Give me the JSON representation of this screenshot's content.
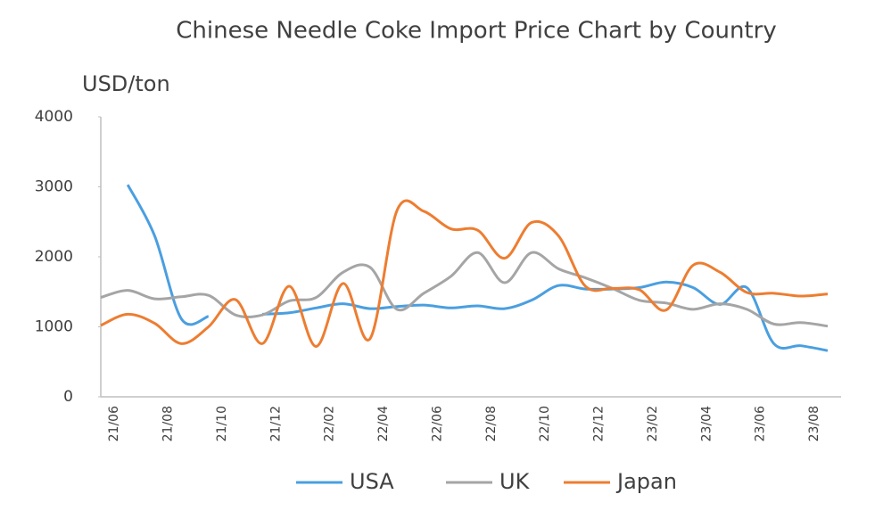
{
  "chart_data": {
    "type": "line",
    "title": "Chinese Needle Coke Import Price Chart by Country",
    "y_label": "USD/ton",
    "categories": [
      null,
      "21/06",
      null,
      "21/08",
      null,
      "21/10",
      null,
      "21/12",
      null,
      "22/02",
      null,
      "22/04",
      null,
      "22/06",
      null,
      "22/08",
      null,
      "22/10",
      null,
      "22/12",
      null,
      "23/02",
      null,
      "23/04",
      null,
      "23/06",
      null,
      "23/08"
    ],
    "series": [
      {
        "name": "USA",
        "color": "#4a9fe0",
        "values": [
          null,
          3030,
          2300,
          1110,
          1150,
          null,
          1180,
          1200,
          1270,
          1330,
          1260,
          1290,
          1310,
          1270,
          1300,
          1260,
          1380,
          1590,
          1540,
          1540,
          1560,
          1640,
          1560,
          1320,
          1560,
          760,
          730,
          660
        ]
      },
      {
        "name": "UK",
        "color": "#a5a5a5",
        "values": [
          1420,
          1520,
          1400,
          1430,
          1450,
          1170,
          1170,
          1370,
          1420,
          1780,
          1850,
          1250,
          1480,
          1720,
          2060,
          1630,
          2060,
          1830,
          1700,
          1550,
          1380,
          1340,
          1250,
          1330,
          1250,
          1040,
          1060,
          1010
        ]
      },
      {
        "name": "Japan",
        "color": "#ed7d31",
        "values": [
          1020,
          1180,
          1050,
          760,
          1000,
          1390,
          760,
          1580,
          720,
          1620,
          830,
          2660,
          2650,
          2400,
          2380,
          1980,
          2490,
          2300,
          1580,
          1550,
          1530,
          1240,
          1880,
          1780,
          1490,
          1480,
          1440,
          1470
        ]
      }
    ],
    "ylim": [
      0,
      4000
    ],
    "yticks": [
      0,
      1000,
      2000,
      3000,
      4000
    ],
    "legend": "bottom"
  }
}
